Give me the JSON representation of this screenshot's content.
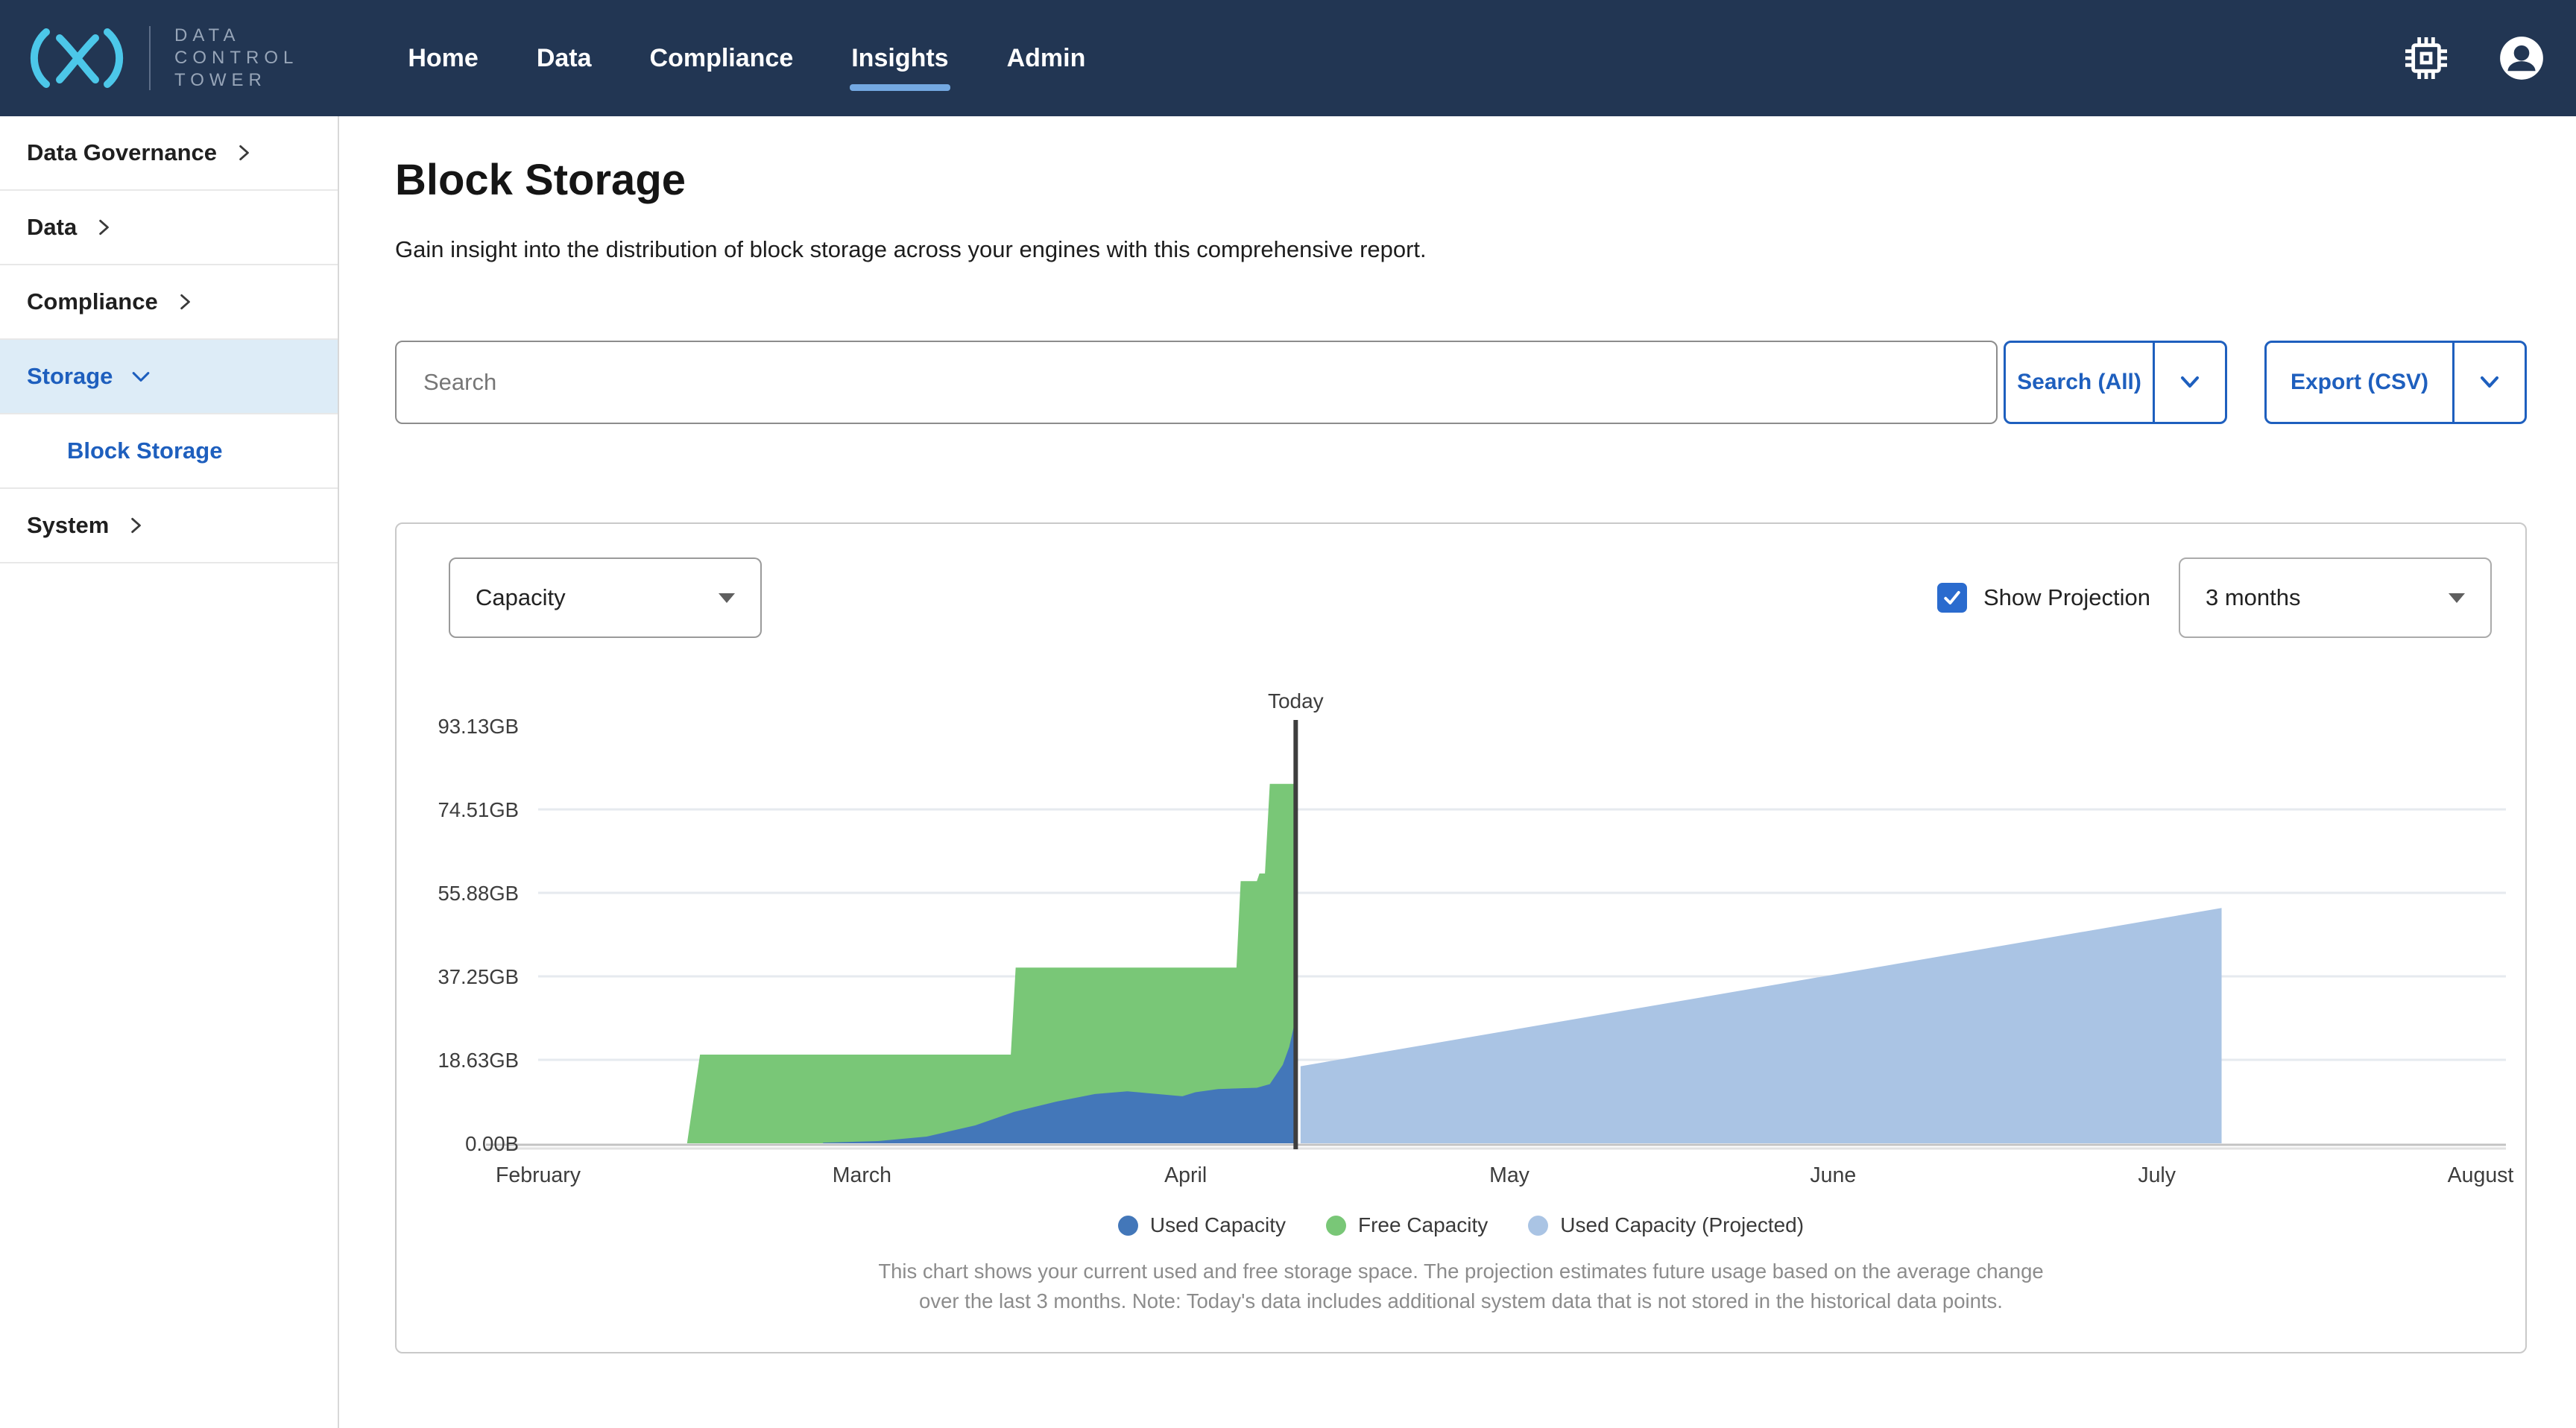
{
  "navbar": {
    "brand_lines": [
      "DATA",
      "CONTROL",
      "TOWER"
    ],
    "links": [
      {
        "label": "Home"
      },
      {
        "label": "Data"
      },
      {
        "label": "Compliance"
      },
      {
        "label": "Insights"
      },
      {
        "label": "Admin"
      }
    ],
    "active_link": "Insights",
    "icons": {
      "settings": "memory-chip",
      "profile": "account-circle"
    }
  },
  "sidebar": {
    "items": [
      {
        "label": "Data Governance"
      },
      {
        "label": "Data"
      },
      {
        "label": "Compliance"
      },
      {
        "label": "Storage"
      },
      {
        "label": "Block Storage"
      },
      {
        "label": "System"
      }
    ]
  },
  "page": {
    "title": "Block Storage",
    "subtitle": "Gain insight into the distribution of block storage across your engines with this comprehensive report."
  },
  "search": {
    "placeholder": "Search",
    "search_button_label": "Search (All)",
    "export_button_label": "Export (CSV)"
  },
  "controls": {
    "metric_select_value": "Capacity",
    "show_projection_label": "Show Projection",
    "projection_checked": true,
    "range_select_value": "3 months"
  },
  "chart_data": {
    "type": "area",
    "x_labels": [
      "February",
      "March",
      "April",
      "May",
      "June",
      "July",
      "August"
    ],
    "y_ticks": [
      "0.00B",
      "18.63GB",
      "37.25GB",
      "55.88GB",
      "74.51GB",
      "93.13GB"
    ],
    "y_max_gb": 93.13,
    "today_x": 2.34,
    "today_label": "Today",
    "legend": [
      {
        "label": "Used Capacity",
        "color": "#4377b9"
      },
      {
        "label": "Free Capacity",
        "color": "#79c777"
      },
      {
        "label": "Used Capacity (Projected)",
        "color": "#aac4e4"
      }
    ],
    "series": {
      "free_stacked_top": [
        [
          0.46,
          0
        ],
        [
          0.5,
          19.8
        ],
        [
          1.46,
          19.8
        ],
        [
          1.475,
          39.2
        ],
        [
          2.157,
          39.2
        ],
        [
          2.17,
          58.5
        ],
        [
          2.22,
          58.5
        ],
        [
          2.228,
          60.2
        ],
        [
          2.245,
          60.2
        ],
        [
          2.26,
          80.2
        ],
        [
          2.335,
          80.2
        ]
      ],
      "used": [
        [
          0.88,
          0.15
        ],
        [
          1.05,
          0.5
        ],
        [
          1.2,
          1.5
        ],
        [
          1.35,
          4.0
        ],
        [
          1.47,
          7.0
        ],
        [
          1.6,
          9.3
        ],
        [
          1.72,
          11.0
        ],
        [
          1.82,
          11.6
        ],
        [
          1.88,
          11.2
        ],
        [
          1.99,
          10.5
        ],
        [
          2.03,
          11.4
        ],
        [
          2.1,
          12.1
        ],
        [
          2.22,
          12.4
        ],
        [
          2.26,
          13.2
        ],
        [
          2.3,
          17.5
        ],
        [
          2.32,
          21.5
        ],
        [
          2.335,
          26.3
        ]
      ],
      "projected": [
        [
          2.355,
          17.2
        ],
        [
          5.2,
          52.5
        ]
      ]
    },
    "grid_color": "#e6eaef",
    "axis_color": "#c3c3c3",
    "today_line_color": "#3e3e3e",
    "caption_line1": "This chart shows your current used and free storage space. The projection estimates future usage based on the average change",
    "caption_line2": "over the last 3 months. Note: Today's data includes additional system data that is not stored in the historical data points."
  },
  "colors": {
    "navbar_bg": "#223653",
    "accent_blue": "#1e5fbe",
    "active_underline": "#74a9e2",
    "sidebar_active_bg": "#ddecf7",
    "checkbox_blue": "#2a6bce",
    "logo_cyan": "#4cc7e9"
  }
}
